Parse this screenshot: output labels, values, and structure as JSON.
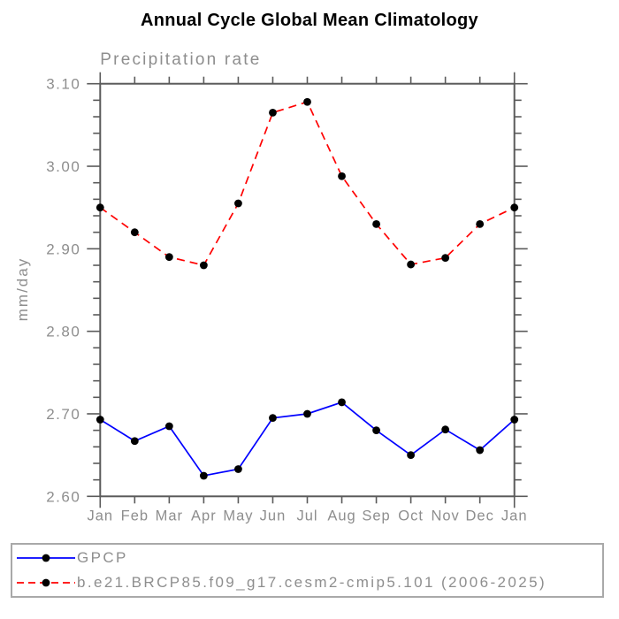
{
  "title": "Annual Cycle Global Mean Climatology",
  "colors": {
    "axis": "#5a5a5a",
    "tick": "#5a5a5a",
    "label_text": "#8e8e8e",
    "title_text": "#000000",
    "legend_border": "#a9a9a9",
    "gpcp_blue": "#0000ff",
    "model_red": "#ff0000",
    "marker_black": "#000000"
  },
  "chart_data": {
    "type": "line",
    "title": "Annual Cycle Global Mean Climatology",
    "subtitle": "Precipitation rate",
    "xlabel": "",
    "ylabel": "mm/day",
    "categories": [
      "Jan",
      "Feb",
      "Mar",
      "Apr",
      "May",
      "Jun",
      "Jul",
      "Aug",
      "Sep",
      "Oct",
      "Nov",
      "Dec",
      "Jan"
    ],
    "ylim": [
      2.6,
      3.1
    ],
    "ytick_major": 0.1,
    "ytick_minor": 0.02,
    "grid": "off",
    "legend_position": "bottom",
    "series": [
      {
        "name": "GPCP",
        "color": "#0000ff",
        "line_style": "solid",
        "marker": "circle",
        "marker_color": "#000000",
        "values": [
          2.693,
          2.667,
          2.685,
          2.625,
          2.633,
          2.695,
          2.7,
          2.714,
          2.68,
          2.65,
          2.681,
          2.656,
          2.693
        ]
      },
      {
        "name": "b.e21.BRCP85.f09_g17.cesm2-cmip5.101 (2006-2025)",
        "color": "#ff0000",
        "line_style": "dashed",
        "marker": "circle",
        "marker_color": "#000000",
        "values": [
          2.95,
          2.92,
          2.89,
          2.88,
          2.955,
          3.065,
          3.078,
          2.988,
          2.93,
          2.881,
          2.889,
          2.93,
          2.95
        ]
      }
    ]
  }
}
